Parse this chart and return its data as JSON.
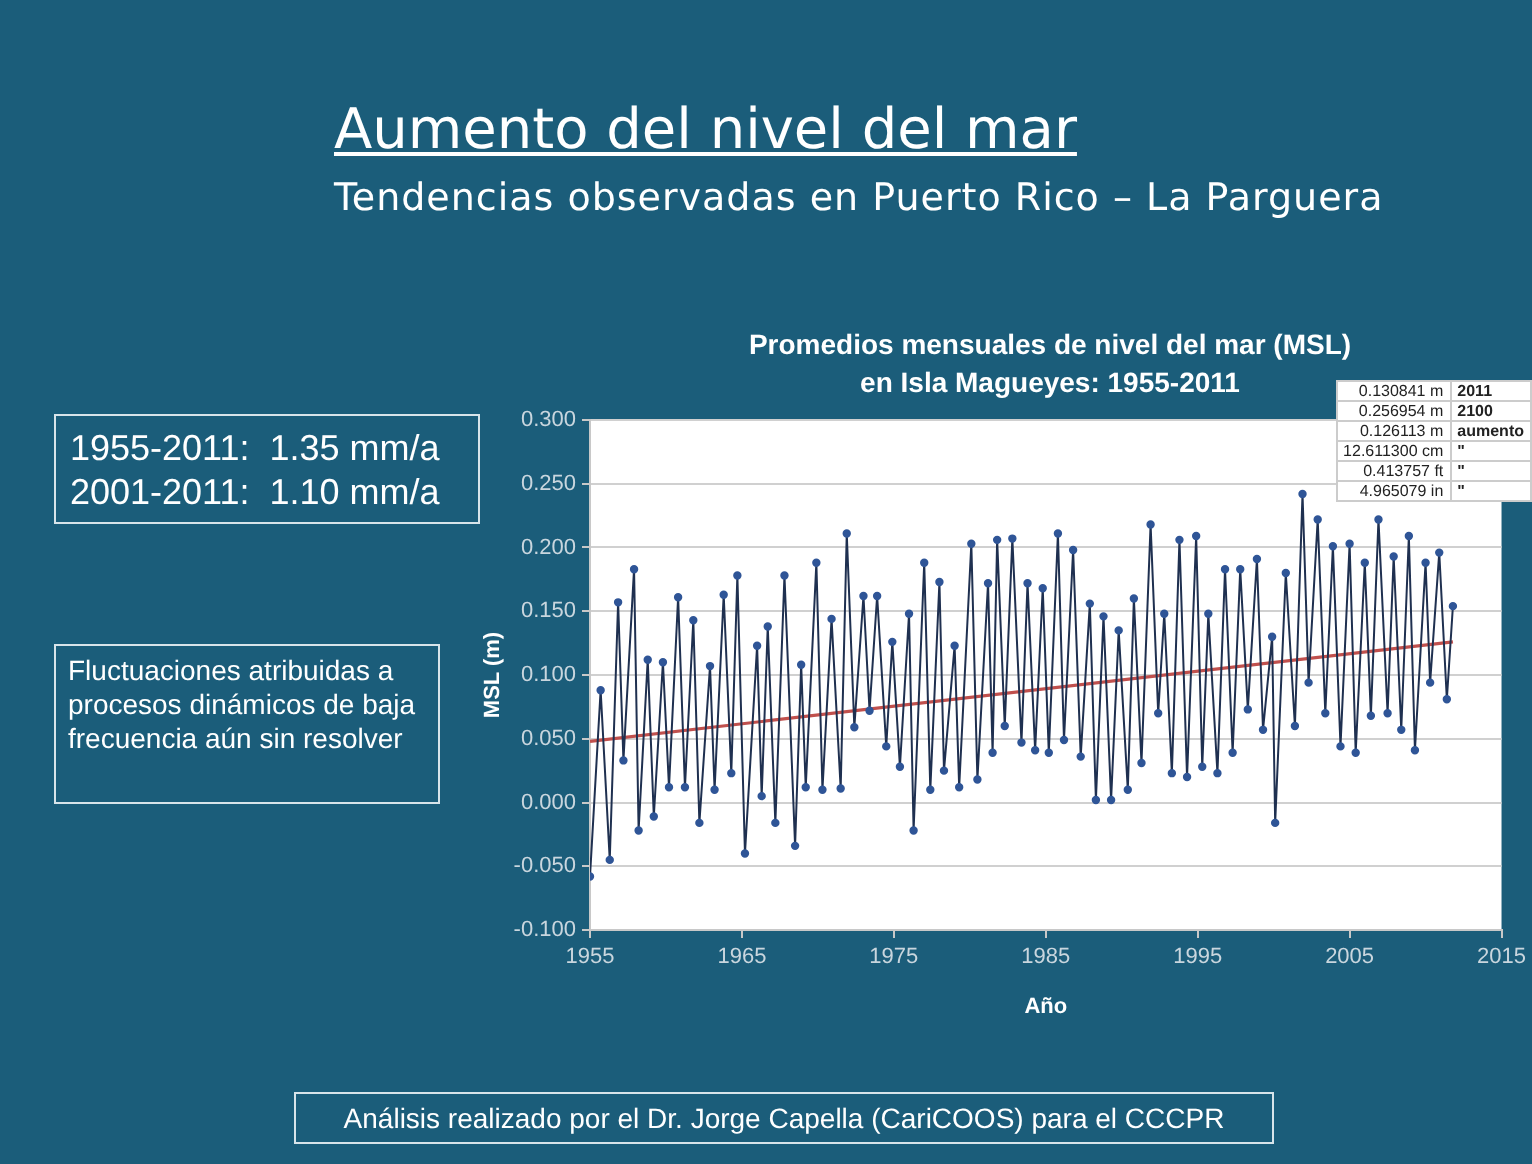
{
  "chart_data": {
    "type": "line",
    "title": "Promedios mensuales de nivel del mar (MSL)\nen Isla Magueyes: 1955-2011",
    "xlabel": "Año",
    "ylabel": "MSL (m)",
    "annotations": [
      "Aumento del nivel del mar",
      "Tendencias observadas en Puerto Rico – La Parguera",
      "1955-2011:  1.35 mm/a\n2001-2011:  1.10 mm/a",
      "Fluctuaciones atribuidas a procesos dinámicos de baja frecuencia aún sin resolver",
      "Análisis realizado por el Dr. Jorge Capella (CariCOOS) para el CCCPR",
      "0.130841 m",
      "2011",
      "0.256954 m",
      "2100",
      "0.126113 m",
      "aumento",
      "12.611300 cm",
      "\"",
      "0.413757 ft",
      "\"",
      "4.965079 in",
      "\""
    ],
    "xlim": [
      1955,
      2015
    ],
    "xticks": [
      1955,
      1965,
      1975,
      1985,
      1995,
      2005,
      2015
    ],
    "ylim": [
      -0.1,
      0.3
    ],
    "yticks": [
      {
        "value": -0.1,
        "label": "-0.100"
      },
      {
        "value": -0.05,
        "label": "-0.050"
      },
      {
        "value": 0,
        "label": "0.000"
      },
      {
        "value": 0.05,
        "label": "0.050"
      },
      {
        "value": 0.1,
        "label": "0.100"
      },
      {
        "value": 0.15,
        "label": "0.150"
      },
      {
        "value": 0.2,
        "label": "0.200"
      },
      {
        "value": 0.25,
        "label": "0.250"
      },
      {
        "value": 0.3,
        "label": "0.300"
      }
    ],
    "grid": "y",
    "legend": false,
    "marker": "circle",
    "line_style": "solid",
    "series": [
      {
        "color": "#2f5597",
        "x": [
          1955.0,
          1955.7,
          1956.3,
          1956.85,
          1957.2,
          1957.9,
          1958.2,
          1958.8,
          1959.2,
          1959.8,
          1960.2,
          1960.8,
          1961.25,
          1961.8,
          1962.2,
          1962.9,
          1963.2,
          1963.8,
          1964.3,
          1964.7,
          1965.2,
          1966.0,
          1966.3,
          1966.7,
          1967.2,
          1967.8,
          1968.5,
          1968.9,
          1969.2,
          1969.9,
          1970.3,
          1970.9,
          1971.5,
          1971.9,
          1972.4,
          1973.0,
          1973.4,
          1973.9,
          1974.5,
          1974.9,
          1975.4,
          1976.0,
          1976.3,
          1977.0,
          1977.4,
          1978.0,
          1978.3,
          1979.0,
          1979.3,
          1980.1,
          1980.5,
          1981.2,
          1981.5,
          1981.8,
          1982.3,
          1982.8,
          1983.4,
          1983.8,
          1984.3,
          1984.8,
          1985.2,
          1985.8,
          1986.2,
          1986.8,
          1987.3,
          1987.9,
          1988.3,
          1988.8,
          1989.3,
          1989.8,
          1990.4,
          1990.8,
          1991.3,
          1991.9,
          1992.4,
          1992.8,
          1993.3,
          1993.8,
          1994.3,
          1994.9,
          1995.3,
          1995.7,
          1996.3,
          1996.8,
          1997.3,
          1997.8,
          1998.3,
          1998.9,
          1999.3,
          1999.9,
          2000.1,
          2000.8,
          2001.4,
          2001.9,
          2002.3,
          2002.9,
          2003.4,
          2003.9,
          2004.4,
          2005.0,
          2005.4,
          2006.0,
          2006.4,
          2006.9,
          2007.5,
          2007.9,
          2008.4,
          2008.9,
          2009.3,
          2010.0,
          2010.3,
          2010.9,
          2011.4,
          2011.8
        ],
        "values": [
          -0.058,
          0.088,
          -0.045,
          0.157,
          0.033,
          0.183,
          -0.022,
          0.112,
          -0.011,
          0.11,
          0.012,
          0.161,
          0.012,
          0.143,
          -0.016,
          0.107,
          0.01,
          0.163,
          0.023,
          0.178,
          -0.04,
          0.123,
          0.005,
          0.138,
          -0.016,
          0.178,
          -0.034,
          0.108,
          0.012,
          0.188,
          0.01,
          0.144,
          0.011,
          0.211,
          0.059,
          0.162,
          0.072,
          0.162,
          0.044,
          0.126,
          0.028,
          0.148,
          -0.022,
          0.188,
          0.01,
          0.173,
          0.025,
          0.123,
          0.012,
          0.203,
          0.018,
          0.172,
          0.039,
          0.206,
          0.06,
          0.207,
          0.047,
          0.172,
          0.041,
          0.168,
          0.039,
          0.211,
          0.049,
          0.198,
          0.036,
          0.156,
          0.002,
          0.146,
          0.002,
          0.135,
          0.01,
          0.16,
          0.031,
          0.218,
          0.07,
          0.148,
          0.023,
          0.206,
          0.02,
          0.209,
          0.028,
          0.148,
          0.023,
          0.183,
          0.039,
          0.183,
          0.073,
          0.191,
          0.057,
          0.13,
          -0.016,
          0.18,
          0.06,
          0.242,
          0.094,
          0.222,
          0.07,
          0.201,
          0.044,
          0.203,
          0.039,
          0.188,
          0.068,
          0.222,
          0.07,
          0.193,
          0.057,
          0.209,
          0.041,
          0.188,
          0.094,
          0.196,
          0.081,
          0.154
        ]
      },
      {
        "color": "#c0504d",
        "marker": "none",
        "x": [
          1955,
          2011.8
        ],
        "values": [
          0.048,
          0.126
        ]
      }
    ]
  }
}
